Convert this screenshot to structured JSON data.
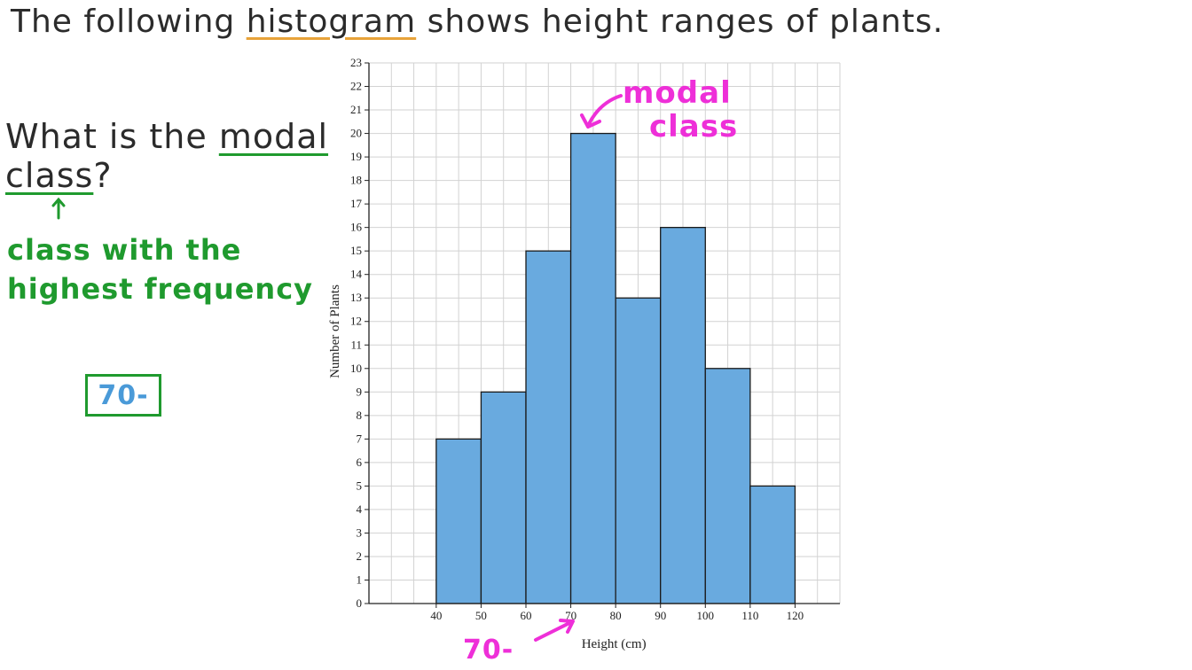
{
  "title": {
    "pre": "The following ",
    "word": "histogram",
    "post": " shows height ranges of plants."
  },
  "question": {
    "line1_pre": "What is the ",
    "line1_word": "modal",
    "line2_word": "class",
    "line2_post": "?"
  },
  "note": {
    "line1": "class with the",
    "line2": "highest frequency"
  },
  "answer": "70-",
  "annotations": {
    "modal_line1": "modal",
    "modal_line2": "class",
    "x_label": "70-",
    "color": "#ee2fd8"
  },
  "colors": {
    "bar_fill": "#69aadf",
    "note_green": "#1f9a2e",
    "answer_blue": "#4a9ad8",
    "title_underline": "#e8a33a"
  },
  "icons": [
    "up-arrow-icon",
    "curved-arrow-icon"
  ],
  "chart_data": {
    "type": "bar",
    "bins": [
      [
        40,
        50
      ],
      [
        50,
        60
      ],
      [
        60,
        70
      ],
      [
        70,
        80
      ],
      [
        80,
        90
      ],
      [
        90,
        100
      ],
      [
        100,
        110
      ],
      [
        110,
        120
      ]
    ],
    "values": [
      7,
      9,
      15,
      20,
      13,
      16,
      10,
      5
    ],
    "x_ticks": [
      40,
      50,
      60,
      70,
      80,
      90,
      100,
      110,
      120
    ],
    "xlim": [
      25,
      130
    ],
    "ylim": [
      0,
      23
    ],
    "y_ticks": [
      0,
      1,
      2,
      3,
      4,
      5,
      6,
      7,
      8,
      9,
      10,
      11,
      12,
      13,
      14,
      15,
      16,
      17,
      18,
      19,
      20,
      21,
      22,
      23
    ],
    "xlabel": "Height (cm)",
    "ylabel": "Number of Plants",
    "grid": true
  }
}
